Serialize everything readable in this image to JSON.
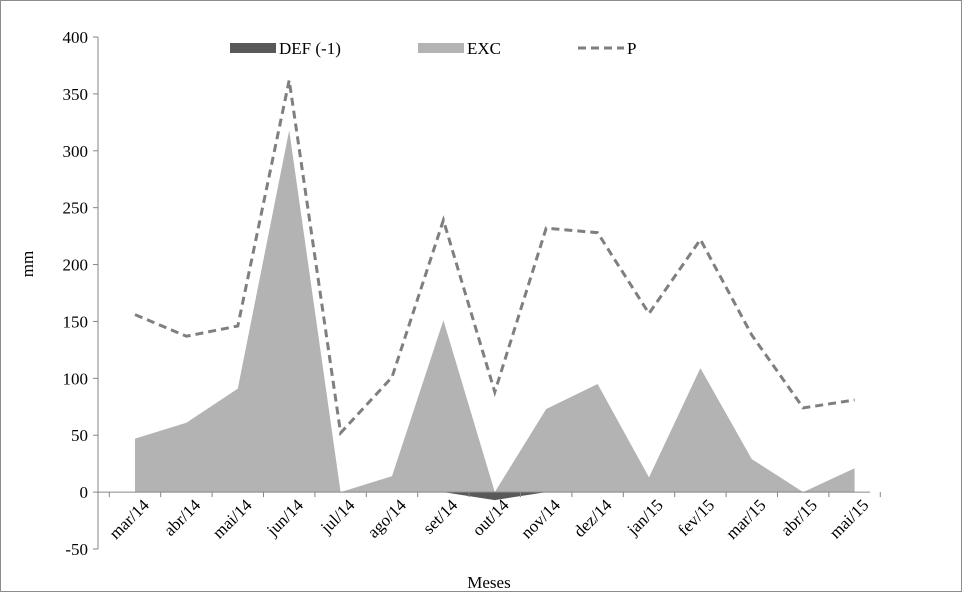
{
  "chart_data": {
    "type": "area",
    "categories": [
      "mar/14",
      "abr/14",
      "mai/14",
      "jun/14",
      "jul/14",
      "ago/14",
      "set/14",
      "out/14",
      "nov/14",
      "dez/14",
      "jan/15",
      "fev/15",
      "mar/15",
      "abr/15",
      "mai/15"
    ],
    "series": [
      {
        "name": "DEF (-1)",
        "kind": "area",
        "color": "#595959",
        "values": [
          0,
          0,
          0,
          0,
          0,
          0,
          0,
          -7,
          0,
          0,
          0,
          0,
          0,
          0,
          0
        ]
      },
      {
        "name": "EXC",
        "kind": "area",
        "color": "#b3b3b3",
        "values": [
          47,
          61,
          91,
          318,
          0,
          14,
          151,
          0,
          73,
          95,
          13,
          109,
          29,
          0,
          21
        ]
      },
      {
        "name": "P",
        "kind": "line-dashed",
        "color": "#7f7f7f",
        "values": [
          156,
          137,
          146,
          362,
          52,
          101,
          239,
          88,
          232,
          228,
          157,
          222,
          138,
          74,
          81
        ]
      }
    ],
    "xlabel": "Meses",
    "ylabel": "mm",
    "ylim": [
      -50,
      400
    ],
    "yticks": [
      -50,
      0,
      50,
      100,
      150,
      200,
      250,
      300,
      350,
      400
    ],
    "legend_position": "top",
    "grid": false
  }
}
